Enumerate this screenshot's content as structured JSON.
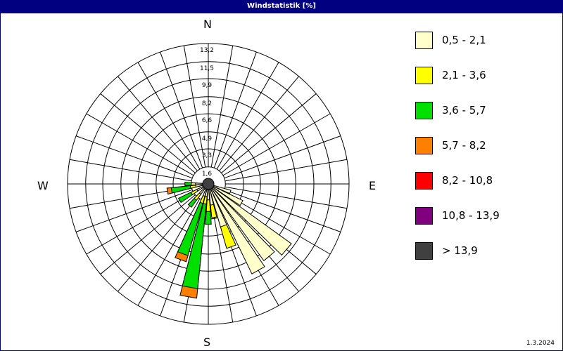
{
  "window": {
    "title": "Windstatistik [%]"
  },
  "footer": {
    "date": "1.3.2024"
  },
  "chart_data": {
    "type": "windrose",
    "title": "Windstatistik [%]",
    "radial_max": 13.2,
    "radial_ticks": [
      "1,6",
      "3,3",
      "4,9",
      "6,6",
      "8,2",
      "9,9",
      "11,5",
      "13,2"
    ],
    "radial_values": [
      1.6,
      3.3,
      4.9,
      6.6,
      8.2,
      9.9,
      11.5,
      13.2
    ],
    "sector_width_deg": 10,
    "calm_radius_value": 1.6,
    "directions": {
      "N": "N",
      "E": "E",
      "S": "S",
      "W": "W"
    },
    "classes": [
      {
        "label": "0,5 - 2,1",
        "color": "#ffffcc"
      },
      {
        "label": "2,1 - 3,6",
        "color": "#ffff00"
      },
      {
        "label": "3,6 - 5,7",
        "color": "#00e000"
      },
      {
        "label": "5,7 - 8,2",
        "color": "#ff8000"
      },
      {
        "label": "8,2 - 10,8",
        "color": "#ff0000"
      },
      {
        "label": "10,8 - 13,9",
        "color": "#800080"
      },
      {
        "label": " > 13,9",
        "color": "#404040"
      }
    ],
    "sectors": [
      {
        "dir": 110,
        "values": [
          2.2,
          0,
          0,
          0,
          0,
          0,
          0
        ]
      },
      {
        "dir": 120,
        "values": [
          3.6,
          0,
          0,
          0,
          0,
          0,
          0
        ]
      },
      {
        "dir": 130,
        "values": [
          9.6,
          0,
          0,
          0,
          0,
          0,
          0
        ]
      },
      {
        "dir": 140,
        "values": [
          8.9,
          0,
          0,
          0,
          0,
          0,
          0
        ]
      },
      {
        "dir": 150,
        "values": [
          9.4,
          0,
          0,
          0,
          0,
          0,
          0
        ]
      },
      {
        "dir": 160,
        "values": [
          4.2,
          2.1,
          0,
          0,
          0,
          0,
          0
        ]
      },
      {
        "dir": 170,
        "values": [
          2.0,
          1.2,
          0,
          0,
          0,
          0,
          0
        ]
      },
      {
        "dir": 180,
        "values": [
          1.5,
          1.1,
          1.2,
          0,
          0,
          0,
          0
        ]
      },
      {
        "dir": 190,
        "values": [
          1.2,
          0.7,
          8.0,
          0.9,
          0,
          0,
          0
        ]
      },
      {
        "dir": 200,
        "values": [
          1.2,
          0.7,
          5.1,
          0.6,
          0,
          0,
          0
        ]
      },
      {
        "dir": 220,
        "values": [
          1.2,
          0.7,
          0.8,
          0,
          0,
          0,
          0
        ]
      },
      {
        "dir": 240,
        "values": [
          1.2,
          0.6,
          1.3,
          0,
          0,
          0,
          0
        ]
      },
      {
        "dir": 260,
        "values": [
          1.2,
          0.5,
          1.8,
          0.4,
          0,
          0,
          0
        ]
      },
      {
        "dir": 270,
        "values": [
          1.2,
          0.4,
          0.6,
          0,
          0,
          0,
          0
        ]
      }
    ]
  }
}
